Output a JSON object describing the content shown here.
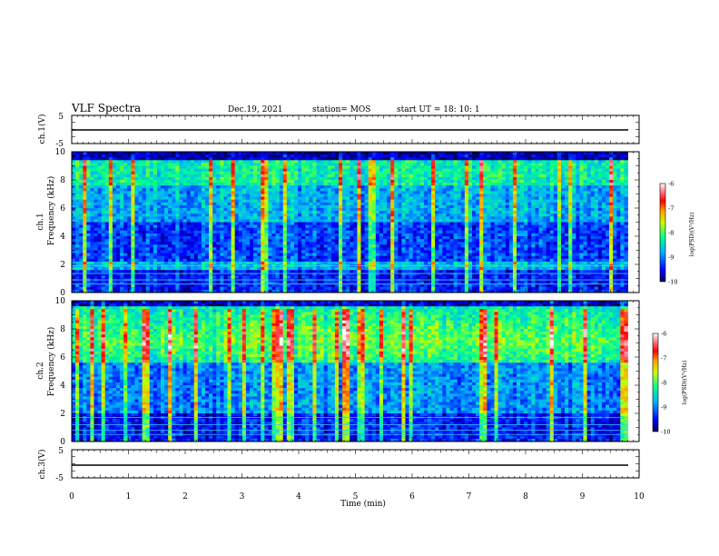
{
  "header": {
    "title": "VLF Spectra",
    "date": "Dec.19, 2021",
    "station": "station= MOS",
    "start_ut": "start  UT  =   18: 10: 1"
  },
  "chart_data": [
    {
      "type": "line",
      "name": "ch1-voltage",
      "ylabel": "ch.1(V)",
      "ylim": [
        -5,
        5
      ],
      "yticks": [
        "5",
        "-5"
      ],
      "x": [
        0,
        9.8
      ],
      "values": [
        -0.4,
        -0.4
      ],
      "xlim": [
        0,
        10
      ]
    },
    {
      "type": "heatmap",
      "name": "ch1-spectrogram",
      "ylabel_top": "ch.1",
      "ylabel": "Frequency (kHz)",
      "ylim": [
        0,
        10
      ],
      "yticks": [
        "0",
        "2",
        "4",
        "6",
        "8",
        "10"
      ],
      "xlim": [
        0,
        9.8
      ],
      "colorbar": {
        "label": "log(PSD)(V²/Hz)",
        "ticks": [
          "-6",
          "-7",
          "-8",
          "-9",
          "-10"
        ],
        "range": [
          -10,
          -6
        ]
      }
    },
    {
      "type": "heatmap",
      "name": "ch2-spectrogram",
      "ylabel_top": "ch.2",
      "ylabel": "Frequency (kHz)",
      "ylim": [
        0,
        10
      ],
      "yticks": [
        "0",
        "2",
        "4",
        "6",
        "8",
        "10"
      ],
      "xlim": [
        0,
        9.8
      ],
      "colorbar": {
        "label": "log(PSD)(V²/Hz)",
        "ticks": [
          "-6",
          "-7",
          "-8",
          "-9",
          "-10"
        ],
        "range": [
          -10,
          -6
        ]
      }
    },
    {
      "type": "line",
      "name": "ch3-voltage",
      "ylabel": "ch.3(V)",
      "ylim": [
        -5,
        5
      ],
      "yticks": [
        "5",
        "-5"
      ],
      "x": [
        0,
        9.8
      ],
      "values": [
        -0.4,
        -0.4
      ],
      "xlim": [
        0,
        10
      ]
    }
  ],
  "xaxis": {
    "label": "Time  (min)",
    "ticks": [
      "0",
      "1",
      "2",
      "3",
      "4",
      "5",
      "6",
      "7",
      "8",
      "9",
      "10"
    ],
    "range": [
      0,
      10
    ]
  },
  "colors": {
    "background": "#000060",
    "colormap": [
      "#00008b",
      "#0000ff",
      "#00bfff",
      "#00ff80",
      "#ffff00",
      "#ff0000",
      "#ff80a0",
      "#ffffff"
    ]
  }
}
